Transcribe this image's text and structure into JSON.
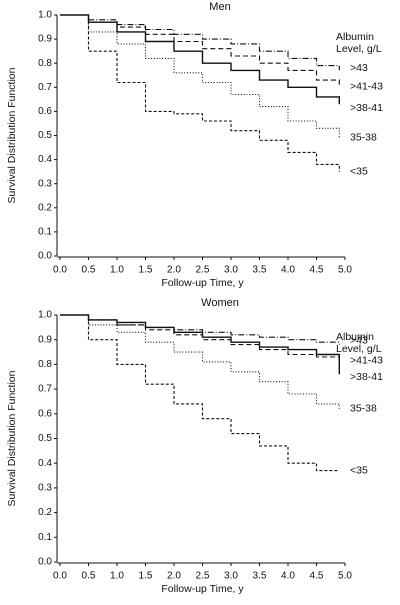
{
  "chart_data": [
    {
      "type": "step",
      "title": "Men",
      "x_label": "Follow-up Time, y",
      "y_label": "Survival Distribution Function",
      "legend_title": [
        "Albumin",
        "Level, g/L"
      ],
      "x": [
        0,
        0.5,
        1,
        1.5,
        2,
        2.5,
        3,
        3.5,
        4,
        4.5,
        4.9
      ],
      "xlim": [
        0,
        5
      ],
      "ylim": [
        0,
        1
      ],
      "xticks": [
        {
          "value": 0,
          "label": "0.0"
        },
        0.5,
        {
          "value": 1,
          "label": "1.0"
        },
        1.5,
        {
          "value": 2,
          "label": "2.0"
        },
        2.5,
        {
          "value": 3,
          "label": "3.0"
        },
        3.5,
        {
          "value": 4,
          "label": "4.0"
        },
        4.5,
        {
          "value": 5,
          "label": "5.0"
        }
      ],
      "yticks": [
        {
          "value": 0,
          "label": "0.0"
        },
        0.1,
        0.2,
        0.3,
        0.4,
        0.5,
        0.6,
        0.7,
        0.8,
        0.9,
        {
          "value": 1,
          "label": "1.0"
        }
      ],
      "series": [
        {
          "name": ">43",
          "color": "#111111",
          "style": "dashdot",
          "values": [
            1.0,
            0.98,
            0.96,
            0.94,
            0.92,
            0.9,
            0.88,
            0.85,
            0.82,
            0.79,
            0.77
          ]
        },
        {
          "name": ">41-43",
          "color": "#111111",
          "style": "dashed",
          "values": [
            1.0,
            0.97,
            0.95,
            0.92,
            0.89,
            0.86,
            0.83,
            0.8,
            0.77,
            0.73,
            0.71
          ]
        },
        {
          "name": ">38-41",
          "color": "#111111",
          "style": "solid",
          "values": [
            1.0,
            0.97,
            0.93,
            0.89,
            0.85,
            0.8,
            0.77,
            0.73,
            0.7,
            0.66,
            0.63
          ]
        },
        {
          "name": "35-38",
          "color": "#111111",
          "style": "dotted",
          "values": [
            1.0,
            0.93,
            0.88,
            0.82,
            0.76,
            0.72,
            0.67,
            0.62,
            0.56,
            0.53,
            0.49
          ]
        },
        {
          "name": "<35",
          "color": "#111111",
          "style": "shortdash",
          "values": [
            1.0,
            0.85,
            0.72,
            0.6,
            0.59,
            0.56,
            0.52,
            0.48,
            0.43,
            0.38,
            0.35
          ]
        }
      ]
    },
    {
      "type": "step",
      "title": "Women",
      "x_label": "Follow-up Time, y",
      "y_label": "Survival Distribution Function",
      "legend_title": [
        "Albumin",
        "Level, g/L"
      ],
      "x": [
        0,
        0.5,
        1,
        1.5,
        2,
        2.5,
        3,
        3.5,
        4,
        4.5,
        4.9
      ],
      "xlim": [
        0,
        5
      ],
      "ylim": [
        0,
        1
      ],
      "xticks": [
        {
          "value": 0,
          "label": "0.0"
        },
        0.5,
        {
          "value": 1,
          "label": "1.0"
        },
        1.5,
        {
          "value": 2,
          "label": "2.0"
        },
        2.5,
        {
          "value": 3,
          "label": "3.0"
        },
        3.5,
        {
          "value": 4,
          "label": "4.0"
        },
        4.5,
        {
          "value": 5,
          "label": "5.0"
        }
      ],
      "yticks": [
        {
          "value": 0,
          "label": "0.0"
        },
        0.1,
        0.2,
        0.3,
        0.4,
        0.5,
        0.6,
        0.7,
        0.8,
        0.9,
        {
          "value": 1,
          "label": "1.0"
        }
      ],
      "series": [
        {
          "name": ">43",
          "color": "#111111",
          "style": "dashdot",
          "values": [
            1.0,
            0.98,
            0.96,
            0.95,
            0.94,
            0.93,
            0.92,
            0.91,
            0.9,
            0.89,
            0.88
          ]
        },
        {
          "name": ">41-43",
          "color": "#111111",
          "style": "dashed",
          "values": [
            1.0,
            0.98,
            0.96,
            0.94,
            0.92,
            0.9,
            0.88,
            0.86,
            0.84,
            0.83,
            0.81
          ]
        },
        {
          "name": ">38-41",
          "color": "#111111",
          "style": "solid",
          "values": [
            1.0,
            0.98,
            0.97,
            0.95,
            0.93,
            0.91,
            0.89,
            0.87,
            0.86,
            0.84,
            0.76
          ]
        },
        {
          "name": "35-38",
          "color": "#111111",
          "style": "dotted",
          "values": [
            1.0,
            0.96,
            0.93,
            0.89,
            0.85,
            0.81,
            0.77,
            0.73,
            0.68,
            0.64,
            0.62
          ]
        },
        {
          "name": "<35",
          "color": "#111111",
          "style": "shortdash",
          "values": [
            1.0,
            0.9,
            0.8,
            0.72,
            0.64,
            0.58,
            0.52,
            0.47,
            0.4,
            0.37,
            0.37
          ]
        }
      ]
    }
  ]
}
